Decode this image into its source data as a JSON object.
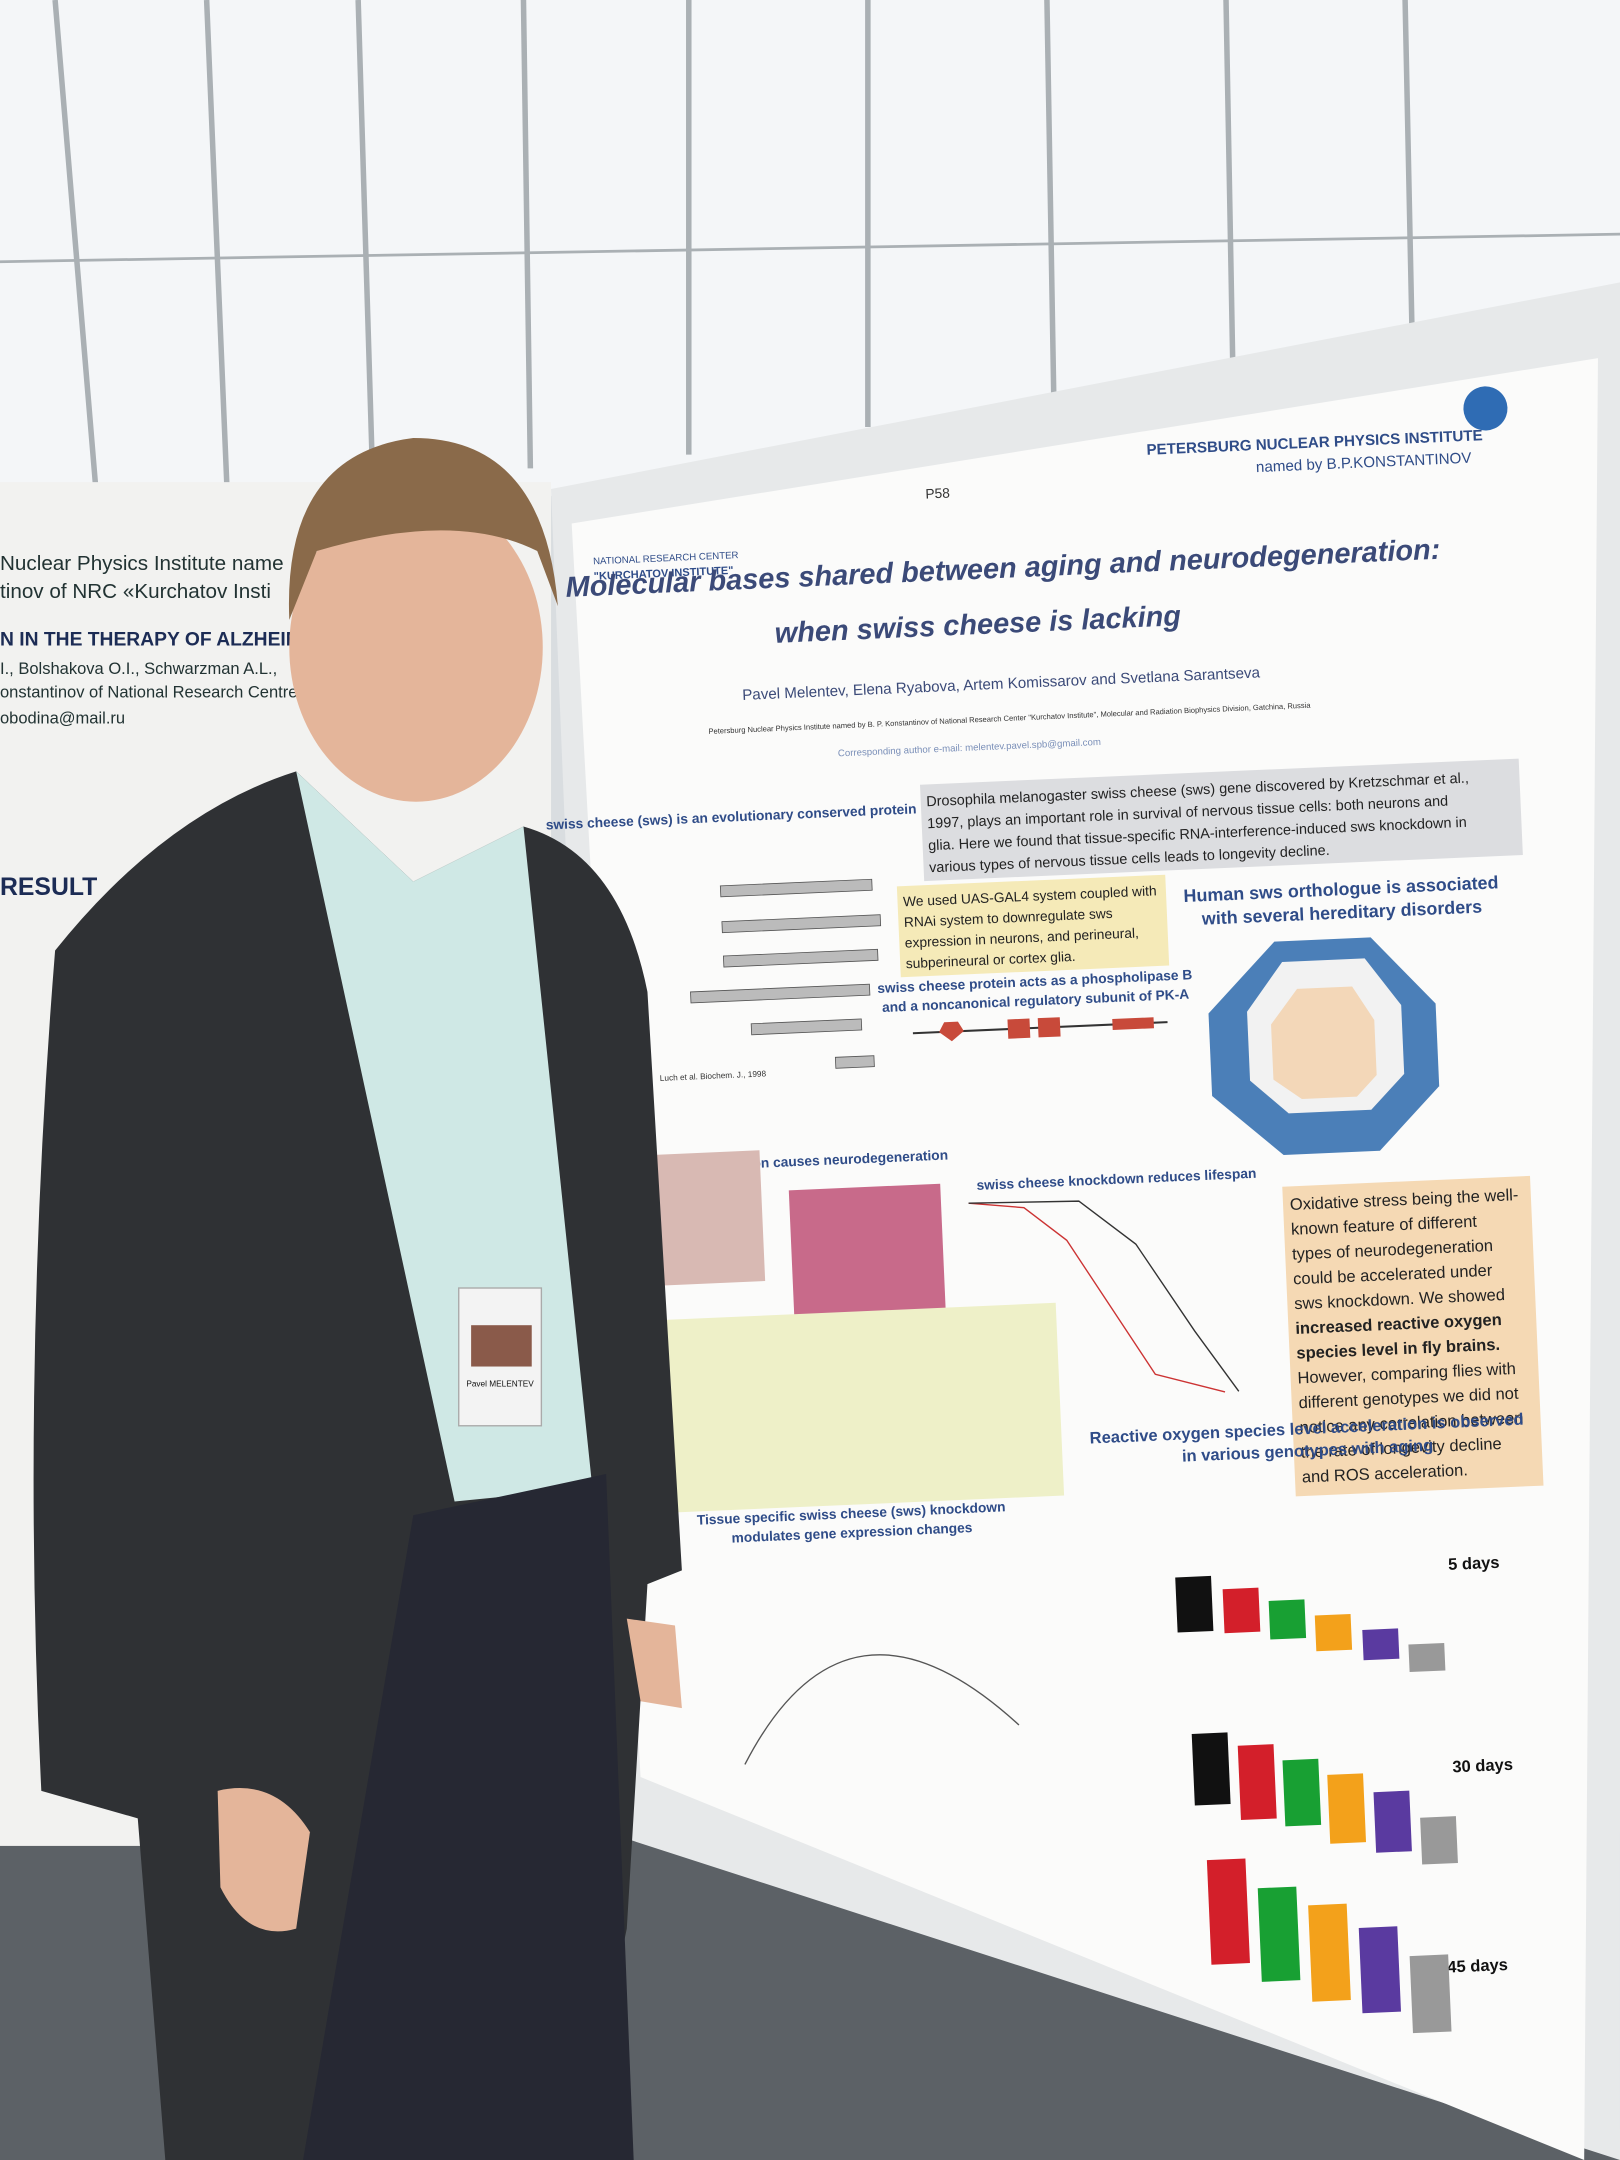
{
  "left_poster": {
    "lines": [
      "Nuclear Physics Institute name",
      "tinov of NRC «Kurchatov Insti",
      "N IN THE THERAPY OF ALZHEIME",
      "I., Bolshakova O.I., Schwarzman A.L.,",
      "onstantinov of National Research Centre",
      "obodina@mail.ru",
      "RESULT"
    ]
  },
  "poster": {
    "board_label": "P58",
    "institute": "PETERSBURG NUCLEAR PHYSICS INSTITUTE",
    "institute_named": "named by B.P.KONSTANTINOV",
    "center": [
      "NATIONAL RESEARCH CENTER",
      "\"KURCHATOV INSTITUTE\""
    ],
    "title": [
      "Molecular bases shared between aging and neurodegeneration:",
      "when swiss cheese is lacking"
    ],
    "authors": "Pavel Melentev, Elena Ryabova, Artem Komissarov and Svetlana Sarantseva",
    "affiliation": "Petersburg Nuclear Physics Institute named by B. P. Konstantinov of National Research Center \"Kurchatov Institute\", Molecular and Radiation Biophysics Division, Gatchina, Russia",
    "email": "Corresponding author e-mail: melentev.pavel.spb@gmail.com",
    "sections": {
      "conserved": "swiss cheese (sws) is an evolutionary conserved protein",
      "reference": "Luch et al. Biochem. J., 1998",
      "intro": [
        "Drosophila melanogaster swiss cheese (sws) gene discovered by Kretzschmar et al.,",
        "1997, plays an important role in survival of nervous tissue cells: both neurons and",
        "glia. Here we found that tissue-specific RNA-interference-induced sws knockdown in",
        "various types of nervous tissue cells leads to longevity decline."
      ],
      "method": [
        "We used UAS-GAL4 system coupled with",
        "RNAi system to downregulate sws",
        "expression in neurons, and perineural,",
        "subperineural or cortex glia."
      ],
      "human": [
        "Human sws orthologue is associated",
        "with several hereditary disorders"
      ],
      "phospholipase": [
        "swiss cheese protein acts as a phospholipase B",
        "and a noncanonical regulatory subunit of PK-A"
      ],
      "dysfunction": "swiss cheese dysfunction causes neurodegeneration",
      "lifespan": "swiss cheese knockdown reduces lifespan",
      "oxidative": [
        "Oxidative stress being the well-",
        "known feature of different",
        "types of neurodegeneration",
        "could be accelerated under",
        "sws knockdown. We showed",
        "increased reactive oxygen",
        "species level in fly brains.",
        "However, comparing flies with",
        "different genotypes we did not",
        "notice any correlation between",
        "the rate of longevity decline",
        "and ROS acceleration."
      ],
      "ros": [
        "Reactive oxygen species level acceleration is observed",
        "in various genotypes with aging"
      ],
      "tissue": [
        "Tissue specific swiss cheese (sws) knockdown",
        "modulates gene expression changes"
      ],
      "panels": [
        "5 days",
        "30 days",
        "45 days"
      ]
    }
  },
  "badge": {
    "name": "Pavel MELENTEV"
  }
}
